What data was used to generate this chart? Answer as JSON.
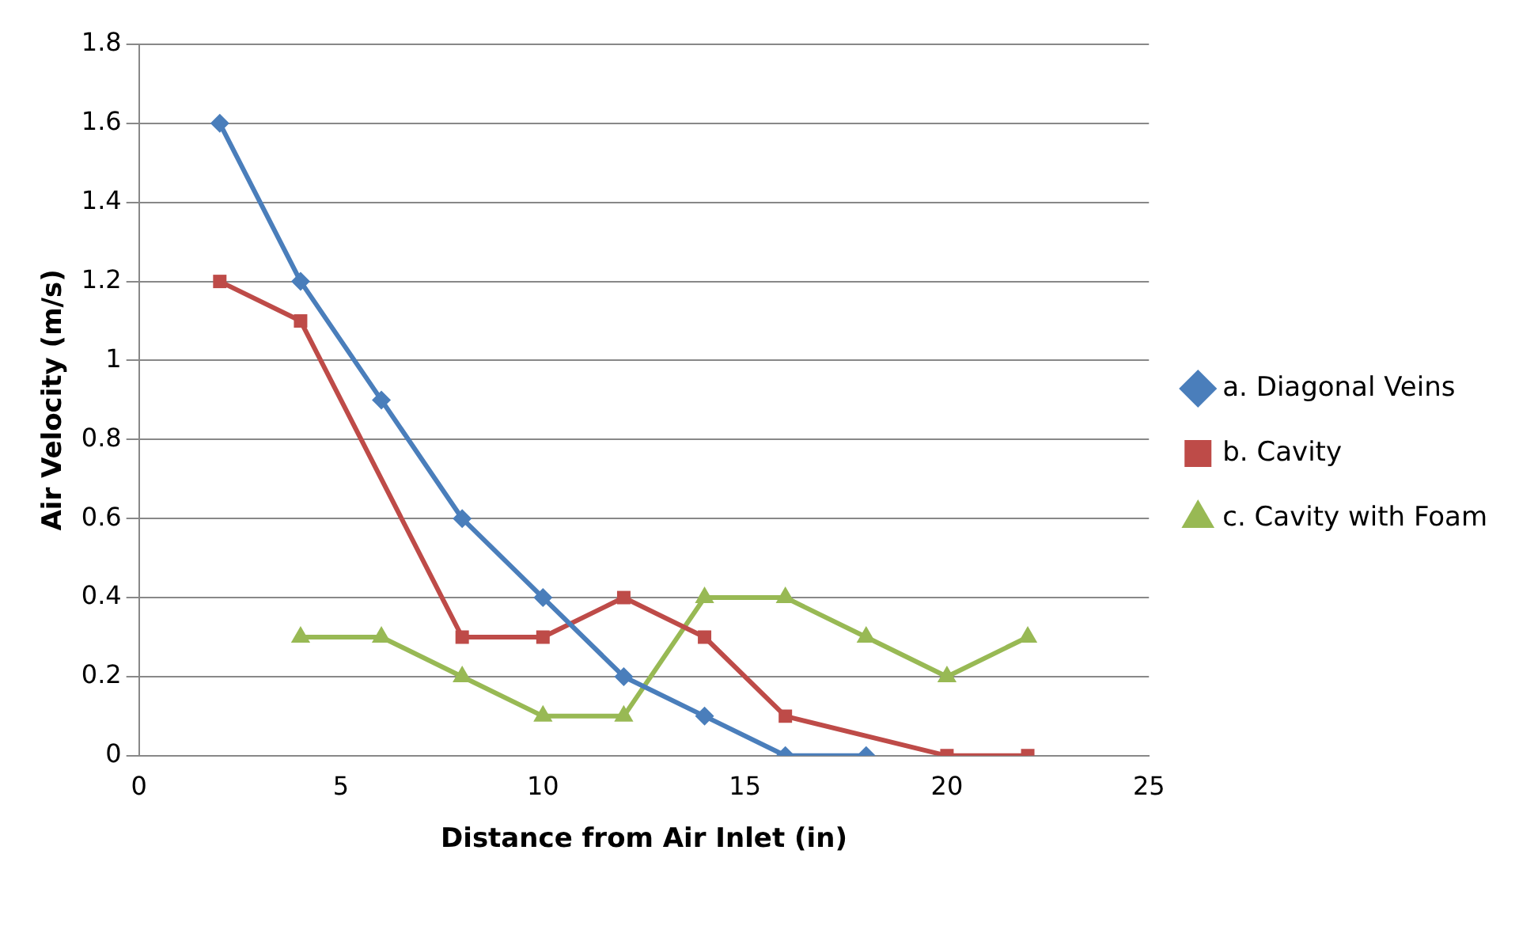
{
  "chart_data": {
    "type": "line",
    "xlabel": "Distance from Air Inlet (in)",
    "ylabel": "Air Velocity (m/s)",
    "xlim": [
      0,
      25
    ],
    "xticks": [
      0,
      5,
      10,
      15,
      20,
      25
    ],
    "ylim": [
      0,
      1.8
    ],
    "yticks": [
      0,
      0.2,
      0.4,
      0.6,
      0.8,
      1,
      1.2,
      1.4,
      1.6,
      1.8
    ],
    "grid": "y",
    "legend": "right",
    "line_style": "solid",
    "series": [
      {
        "name": "a. Diagonal Veins",
        "color": "#4a7ebb",
        "marker": "diamond",
        "x": [
          2,
          4,
          6,
          8,
          10,
          12,
          14,
          16,
          18
        ],
        "values": [
          1.6,
          1.2,
          0.9,
          0.6,
          0.4,
          0.2,
          0.1,
          0,
          0
        ]
      },
      {
        "name": "b. Cavity",
        "color": "#be4b48",
        "marker": "square",
        "x": [
          2,
          4,
          8,
          10,
          12,
          14,
          16,
          20,
          22
        ],
        "values": [
          1.2,
          1.1,
          0.3,
          0.3,
          0.4,
          0.3,
          0.1,
          0,
          0
        ]
      },
      {
        "name": "c. Cavity with Foam",
        "color": "#98b954",
        "marker": "triangle",
        "x": [
          4,
          6,
          8,
          10,
          12,
          14,
          16,
          18,
          20,
          22
        ],
        "values": [
          0.3,
          0.3,
          0.2,
          0.1,
          0.1,
          0.4,
          0.4,
          0.3,
          0.2,
          0.3
        ]
      }
    ]
  }
}
